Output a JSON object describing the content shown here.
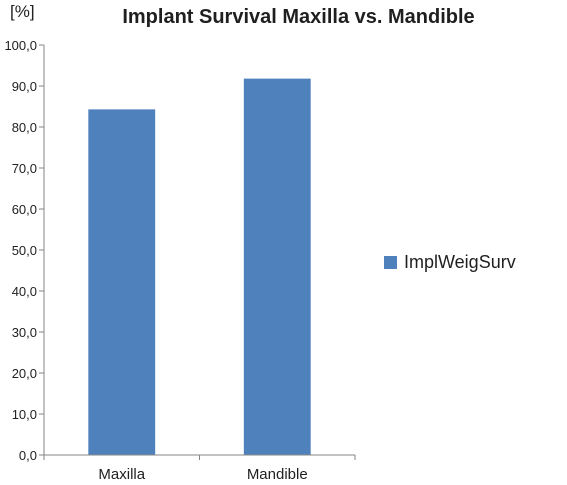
{
  "chart_data": {
    "type": "bar",
    "title": "Implant Survival Maxilla vs. Mandible",
    "xlabel": "",
    "ylabel": "[%]",
    "categories": [
      "Maxilla",
      "Mandible"
    ],
    "series": [
      {
        "name": "ImplWeigSurv",
        "values": [
          84.3,
          91.8
        ],
        "color": "#4f81bd"
      }
    ],
    "ylim": [
      0,
      100
    ],
    "yticks": [
      "0,0",
      "10,0",
      "20,0",
      "30,0",
      "40,0",
      "50,0",
      "60,0",
      "70,0",
      "80,0",
      "90,0",
      "100,0"
    ],
    "grid": false,
    "legend_position": "right"
  }
}
